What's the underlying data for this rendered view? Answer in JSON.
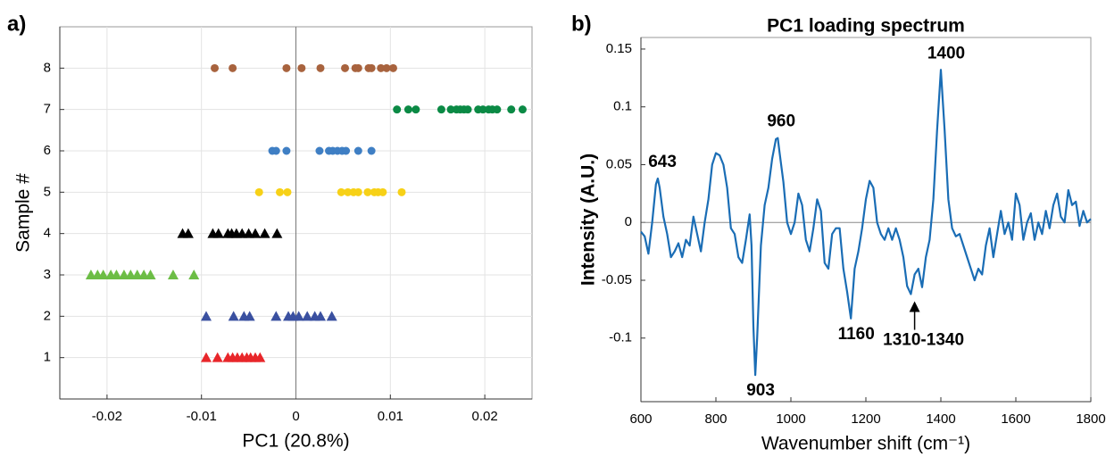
{
  "chart_data": [
    {
      "type": "scatter",
      "panel_label": "a)",
      "x_label": "PC1 (20.8%)",
      "y_label": "Sample #",
      "xlim": [
        -0.025,
        0.025
      ],
      "xticks": [
        -0.02,
        -0.01,
        0,
        0.01,
        0.02
      ],
      "ylim": [
        0,
        9
      ],
      "yticks": [
        1,
        2,
        3,
        4,
        5,
        6,
        7,
        8
      ],
      "grid": true,
      "zero_line": true,
      "series": [
        {
          "color": "#a8633e",
          "marker": "circle",
          "x": [
            -0.0086,
            -0.0067,
            -0.001,
            0.0006,
            0.0026,
            0.0052,
            0.0063,
            0.0066,
            0.0077,
            0.008,
            0.009,
            0.0096,
            0.0103
          ],
          "values": [
            8,
            8,
            8,
            8,
            8,
            8,
            8,
            8,
            8,
            8,
            8,
            8,
            8
          ]
        },
        {
          "color": "#0b8a45",
          "marker": "circle",
          "x": [
            0.0107,
            0.0119,
            0.0127,
            0.0154,
            0.0164,
            0.017,
            0.0174,
            0.0178,
            0.0182,
            0.0193,
            0.0198,
            0.0204,
            0.0208,
            0.0213,
            0.0228,
            0.024
          ],
          "values": [
            7,
            7,
            7,
            7,
            7,
            7,
            7,
            7,
            7,
            7,
            7,
            7,
            7,
            7,
            7,
            7
          ]
        },
        {
          "color": "#3f7fc4",
          "marker": "circle",
          "x": [
            -0.0025,
            -0.0021,
            -0.001,
            0.0025,
            0.0035,
            0.0039,
            0.0044,
            0.0049,
            0.0053,
            0.0066,
            0.008
          ],
          "values": [
            6,
            6,
            6,
            6,
            6,
            6,
            6,
            6,
            6,
            6,
            6
          ]
        },
        {
          "color": "#f7d117",
          "marker": "circle",
          "x": [
            -0.0039,
            -0.0017,
            -0.0009,
            0.0048,
            0.0055,
            0.0061,
            0.0066,
            0.0076,
            0.0083,
            0.0087,
            0.0092,
            0.0112
          ],
          "values": [
            5,
            5,
            5,
            5,
            5,
            5,
            5,
            5,
            5,
            5,
            5,
            5
          ]
        },
        {
          "color": "#000000",
          "marker": "triangle",
          "x": [
            -0.012,
            -0.0114,
            -0.0088,
            -0.0082,
            -0.0072,
            -0.0068,
            -0.0063,
            -0.0057,
            -0.005,
            -0.0043,
            -0.0033,
            -0.002
          ],
          "values": [
            4,
            4,
            4,
            4,
            4,
            4,
            4,
            4,
            4,
            4,
            4,
            4
          ]
        },
        {
          "color": "#6cbd45",
          "marker": "triangle",
          "x": [
            -0.0217,
            -0.021,
            -0.0204,
            -0.0196,
            -0.019,
            -0.0182,
            -0.0175,
            -0.0168,
            -0.0161,
            -0.0154,
            -0.013,
            -0.0108
          ],
          "values": [
            3,
            3,
            3,
            3,
            3,
            3,
            3,
            3,
            3,
            3,
            3,
            3
          ]
        },
        {
          "color": "#3a50a0",
          "marker": "triangle",
          "x": [
            -0.0095,
            -0.0066,
            -0.0055,
            -0.0049,
            -0.0021,
            -0.0008,
            -0.0003,
            0.0003,
            0.0012,
            0.002,
            0.0026,
            0.0038
          ],
          "values": [
            2,
            2,
            2,
            2,
            2,
            2,
            2,
            2,
            2,
            2,
            2,
            2
          ]
        },
        {
          "color": "#e8262a",
          "marker": "triangle",
          "x": [
            -0.0095,
            -0.0083,
            -0.0072,
            -0.0067,
            -0.0062,
            -0.0057,
            -0.0052,
            -0.0048,
            -0.0043,
            -0.0038
          ],
          "values": [
            1,
            1,
            1,
            1,
            1,
            1,
            1,
            1,
            1,
            1
          ]
        }
      ]
    },
    {
      "type": "line",
      "panel_label": "b)",
      "title": "PC1 loading spectrum",
      "x_label": "Wavenumber shift (cm⁻¹)",
      "y_label": "Intensity (A.U.)",
      "xlim": [
        600,
        1800
      ],
      "xticks": [
        600,
        800,
        1000,
        1200,
        1400,
        1600,
        1800
      ],
      "ylim": [
        -0.155,
        0.16
      ],
      "yticks": [
        -0.1,
        -0.05,
        0,
        0.05,
        0.1,
        0.15
      ],
      "grid": false,
      "zero_line": true,
      "x": [
        600,
        610,
        620,
        630,
        640,
        645,
        650,
        660,
        670,
        680,
        690,
        700,
        710,
        720,
        730,
        740,
        750,
        760,
        770,
        780,
        790,
        800,
        810,
        820,
        830,
        840,
        850,
        860,
        870,
        880,
        890,
        895,
        900,
        905,
        910,
        920,
        930,
        940,
        950,
        960,
        965,
        970,
        980,
        990,
        1000,
        1010,
        1020,
        1030,
        1040,
        1050,
        1060,
        1070,
        1080,
        1090,
        1100,
        1110,
        1120,
        1130,
        1140,
        1150,
        1160,
        1170,
        1180,
        1190,
        1200,
        1210,
        1220,
        1230,
        1240,
        1250,
        1260,
        1270,
        1280,
        1290,
        1300,
        1310,
        1320,
        1330,
        1340,
        1350,
        1360,
        1370,
        1380,
        1390,
        1400,
        1410,
        1420,
        1430,
        1440,
        1450,
        1460,
        1470,
        1480,
        1490,
        1500,
        1510,
        1520,
        1530,
        1540,
        1550,
        1560,
        1570,
        1580,
        1590,
        1600,
        1610,
        1620,
        1630,
        1640,
        1650,
        1660,
        1670,
        1680,
        1690,
        1700,
        1710,
        1720,
        1730,
        1740,
        1750,
        1760,
        1770,
        1780,
        1790,
        1800
      ],
      "series": [
        {
          "color": "#1a6db5",
          "values": [
            -0.008,
            -0.012,
            -0.027,
            0.0,
            0.033,
            0.038,
            0.03,
            0.005,
            -0.01,
            -0.03,
            -0.025,
            -0.018,
            -0.03,
            -0.015,
            -0.02,
            0.005,
            -0.01,
            -0.025,
            0.0,
            0.02,
            0.05,
            0.06,
            0.058,
            0.05,
            0.03,
            -0.005,
            -0.01,
            -0.03,
            -0.035,
            -0.015,
            0.007,
            -0.02,
            -0.09,
            -0.132,
            -0.1,
            -0.02,
            0.015,
            0.03,
            0.055,
            0.072,
            0.073,
            0.06,
            0.035,
            0.0,
            -0.01,
            0.0,
            0.025,
            0.015,
            -0.015,
            -0.025,
            -0.005,
            0.02,
            0.01,
            -0.035,
            -0.04,
            -0.01,
            -0.005,
            -0.005,
            -0.04,
            -0.06,
            -0.083,
            -0.04,
            -0.025,
            -0.005,
            0.02,
            0.036,
            0.03,
            0.0,
            -0.01,
            -0.015,
            -0.005,
            -0.015,
            -0.005,
            -0.015,
            -0.03,
            -0.055,
            -0.062,
            -0.045,
            -0.04,
            -0.056,
            -0.03,
            -0.015,
            0.02,
            0.08,
            0.132,
            0.08,
            0.02,
            -0.005,
            -0.012,
            -0.01,
            -0.02,
            -0.03,
            -0.04,
            -0.05,
            -0.04,
            -0.045,
            -0.02,
            -0.005,
            -0.03,
            -0.01,
            0.01,
            -0.01,
            0.0,
            -0.015,
            0.025,
            0.015,
            -0.015,
            0.0,
            0.008,
            -0.015,
            0.0,
            -0.01,
            0.01,
            -0.005,
            0.015,
            0.025,
            0.005,
            0.0,
            0.028,
            0.015,
            0.018,
            -0.003,
            0.01,
            0.0,
            0.003
          ]
        }
      ],
      "annotations": [
        {
          "text": "643",
          "x": 643,
          "y": 0.038,
          "position": "above"
        },
        {
          "text": "960",
          "x": 960,
          "y": 0.073,
          "position": "above"
        },
        {
          "text": "1400",
          "x": 1400,
          "y": 0.132,
          "position": "above"
        },
        {
          "text": "903",
          "x": 905,
          "y": -0.132,
          "position": "below"
        },
        {
          "text": "1160",
          "x": 1160,
          "y": -0.083,
          "position": "below"
        },
        {
          "text": "1310-1340",
          "x": 1330,
          "y": -0.062,
          "position": "below",
          "arrow": true
        }
      ]
    }
  ]
}
